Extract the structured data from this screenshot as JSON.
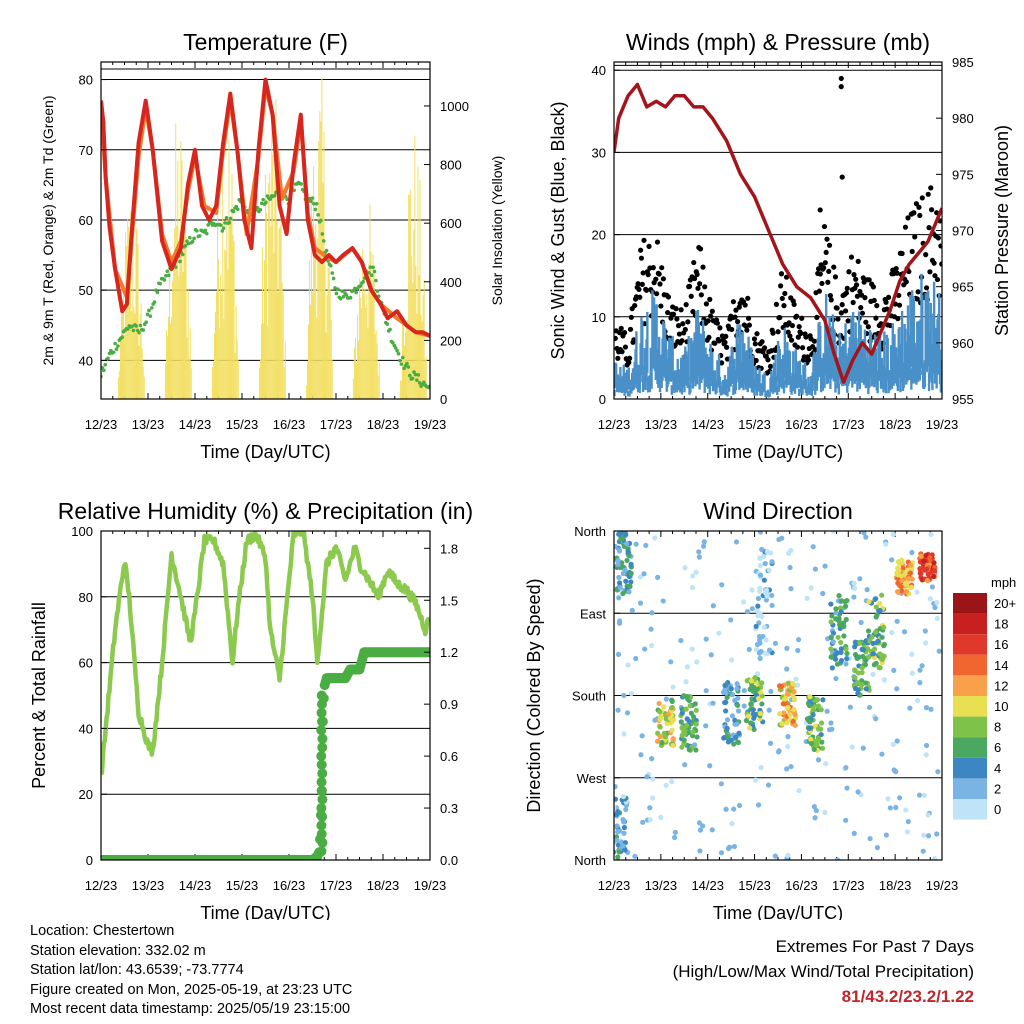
{
  "chart_data": [
    {
      "type": "line",
      "title": "Temperature (F)",
      "xlabel": "Time (Day/UTC)",
      "ylabel": "2m & 9m T (Red, Orange) & 2m Td (Green)",
      "y2label": "Solar Insolation (Yellow)",
      "x_ticks": [
        "12/23",
        "13/23",
        "14/23",
        "15/23",
        "16/23",
        "17/23",
        "18/23",
        "19/23"
      ],
      "xlim": [
        0,
        7
      ],
      "ylim": [
        34.5,
        82.5
      ],
      "y_ticks": [
        40,
        50,
        60,
        70,
        80
      ],
      "y2lim": [
        0,
        1150
      ],
      "y2_ticks": [
        0,
        200,
        400,
        600,
        800,
        1000
      ],
      "grid_y": [
        40,
        50,
        60,
        70,
        80
      ],
      "colors": {
        "t2m": "#d7261e",
        "t9m": "#f27a2c",
        "td2m": "#4aad43",
        "solar": "#f3df60"
      },
      "series": [
        {
          "key": "t2m",
          "x": [
            0,
            0.05,
            0.1,
            0.18,
            0.3,
            0.45,
            0.55,
            0.65,
            0.8,
            0.95,
            1.1,
            1.3,
            1.5,
            1.7,
            1.85,
            2.0,
            2.15,
            2.3,
            2.45,
            2.6,
            2.75,
            2.9,
            3.05,
            3.2,
            3.35,
            3.5,
            3.65,
            3.8,
            3.95,
            4.1,
            4.25,
            4.4,
            4.55,
            4.7,
            4.85,
            5.0,
            5.15,
            5.35,
            5.55,
            5.75,
            5.95,
            6.1,
            6.3,
            6.5,
            6.7,
            6.85,
            7.0
          ],
          "y": [
            77,
            74,
            66,
            59,
            53,
            47,
            48,
            58,
            71,
            77,
            70,
            57,
            53,
            56,
            65,
            70,
            62,
            60,
            62,
            71,
            78,
            70,
            60,
            56,
            70,
            80,
            75,
            62,
            58,
            68,
            75,
            60,
            55,
            54,
            55,
            54,
            55,
            56,
            54,
            50,
            48,
            46,
            47,
            45,
            44,
            44,
            43.5
          ]
        },
        {
          "key": "t9m",
          "x": [
            0,
            0.1,
            0.3,
            0.55,
            0.8,
            0.95,
            1.1,
            1.3,
            1.5,
            1.7,
            1.85,
            2.0,
            2.2,
            2.45,
            2.6,
            2.75,
            2.9,
            3.1,
            3.35,
            3.5,
            3.65,
            3.85,
            4.1,
            4.25,
            4.4,
            4.55,
            4.75,
            5.0,
            5.35,
            5.55,
            5.75,
            5.95,
            6.3,
            6.7,
            7.0
          ],
          "y": [
            76,
            66,
            53,
            49,
            69,
            76,
            70,
            58,
            54,
            57,
            64,
            69,
            62,
            61,
            70,
            77,
            70,
            58,
            69,
            79,
            75,
            63,
            67,
            74,
            61,
            56,
            55,
            54,
            56,
            54,
            50,
            48,
            46,
            44,
            43.5
          ]
        },
        {
          "key": "td2m",
          "x": [
            0,
            0.2,
            0.4,
            0.6,
            0.8,
            1.0,
            1.2,
            1.4,
            1.6,
            1.8,
            2.0,
            2.2,
            2.4,
            2.6,
            2.8,
            3.0,
            3.2,
            3.4,
            3.6,
            3.8,
            4.0,
            4.2,
            4.4,
            4.6,
            4.8,
            5.0,
            5.2,
            5.4,
            5.6,
            5.8,
            6.0,
            6.2,
            6.4,
            6.6,
            6.8,
            7.0
          ],
          "y": [
            38,
            41,
            43,
            45,
            44,
            46,
            50,
            52,
            54,
            56,
            58,
            58,
            60,
            59,
            61,
            63,
            60,
            62,
            63,
            64,
            63,
            65,
            63,
            62,
            55,
            50,
            49,
            50,
            52,
            53,
            47,
            43,
            40,
            38,
            37,
            36
          ]
        },
        {
          "key": "solar",
          "note": "daily insolation peaks",
          "x": [
            0.65,
            1.65,
            2.65,
            3.65,
            4.65,
            5.65,
            6.65
          ],
          "y": [
            760,
            1000,
            1100,
            1090,
            1130,
            720,
            960
          ]
        }
      ]
    },
    {
      "type": "scatter",
      "title": "Winds (mph) & Pressure (mb)",
      "xlabel": "Time (Day/UTC)",
      "ylabel": "Sonic Wind & Gust (Blue, Black)",
      "y2label": "Station Pressure (Maroon)",
      "x_ticks": [
        "12/23",
        "13/23",
        "14/23",
        "15/23",
        "16/23",
        "17/23",
        "18/23",
        "19/23"
      ],
      "xlim": [
        0,
        7
      ],
      "ylim": [
        0,
        41
      ],
      "y_ticks": [
        0,
        10,
        20,
        30,
        40
      ],
      "y2lim": [
        955,
        985
      ],
      "y2_ticks": [
        955,
        960,
        965,
        970,
        975,
        980,
        985
      ],
      "grid_y": [
        10,
        20,
        30,
        40
      ],
      "colors": {
        "wind": "#4a90c8",
        "gust": "#000000",
        "pressure": "#a3151b"
      },
      "pressure": {
        "x": [
          0,
          0.1,
          0.3,
          0.5,
          0.7,
          0.9,
          1.1,
          1.3,
          1.5,
          1.7,
          1.9,
          2.1,
          2.4,
          2.7,
          3.0,
          3.3,
          3.6,
          3.9,
          4.2,
          4.5,
          4.7,
          4.9,
          5.0,
          5.1,
          5.3,
          5.5,
          5.7,
          5.9,
          6.1,
          6.3,
          6.5,
          6.7,
          6.9,
          7.0
        ],
        "y": [
          977,
          980,
          982,
          983,
          981,
          981.5,
          981,
          982,
          982,
          981,
          981,
          980,
          978,
          975,
          973,
          970,
          967,
          965,
          964,
          962,
          959,
          956.5,
          957.5,
          958.5,
          960,
          959,
          961,
          963,
          965.5,
          967,
          968,
          969,
          971,
          972
        ]
      },
      "wind_envelope": {
        "x": [
          0,
          0.3,
          0.6,
          0.9,
          1.2,
          1.5,
          1.8,
          2.1,
          2.4,
          2.7,
          3.0,
          3.3,
          3.6,
          3.9,
          4.2,
          4.5,
          4.8,
          5.1,
          5.4,
          5.7,
          6.0,
          6.3,
          6.6,
          6.9,
          7.0
        ],
        "y": [
          5,
          4,
          12,
          14,
          8,
          6,
          12,
          7,
          4,
          12,
          5,
          3,
          10,
          6,
          4,
          14,
          8,
          12,
          10,
          8,
          10,
          14,
          16,
          15,
          12
        ]
      },
      "gust_envelope": {
        "x": [
          0,
          0.3,
          0.6,
          0.9,
          1.2,
          1.5,
          1.8,
          2.1,
          2.4,
          2.7,
          3.0,
          3.3,
          3.6,
          3.9,
          4.2,
          4.5,
          4.8,
          5.1,
          5.4,
          5.7,
          6.0,
          6.3,
          6.6,
          6.9,
          7.0
        ],
        "y": [
          9,
          7,
          18,
          19,
          11,
          10,
          18,
          10,
          7,
          16,
          8,
          6,
          15,
          10,
          8,
          20,
          12,
          17,
          14,
          12,
          15,
          21,
          23,
          25,
          20
        ]
      },
      "outliers": {
        "x": [
          4.4,
          4.85,
          4.85,
          4.87
        ],
        "y": [
          23,
          39,
          38,
          27
        ]
      }
    },
    {
      "type": "line",
      "title": "Relative Humidity (%) & Precipitation (in)",
      "xlabel": "Time (Day/UTC)",
      "ylabel": "Percent & Total Rainfall",
      "x_ticks": [
        "12/23",
        "13/23",
        "14/23",
        "15/23",
        "16/23",
        "17/23",
        "18/23",
        "19/23"
      ],
      "xlim": [
        0,
        7
      ],
      "ylim": [
        0,
        100
      ],
      "y_ticks": [
        0,
        20,
        40,
        60,
        80,
        100
      ],
      "y2lim": [
        0,
        1.9
      ],
      "y2_ticks": [
        "0.0",
        "0.3",
        "0.6",
        "0.9",
        "1.2",
        "1.5",
        "1.8"
      ],
      "grid_y": [
        20,
        40,
        60,
        80
      ],
      "colors": {
        "rh": "#8cc94f",
        "precip": "#4aad43"
      },
      "series": [
        {
          "key": "rh",
          "x": [
            0,
            0.1,
            0.3,
            0.5,
            0.6,
            0.8,
            1.0,
            1.1,
            1.3,
            1.5,
            1.7,
            1.9,
            2.0,
            2.2,
            2.4,
            2.6,
            2.8,
            2.9,
            3.1,
            3.3,
            3.5,
            3.6,
            3.8,
            4.0,
            4.1,
            4.3,
            4.5,
            4.6,
            4.8,
            5.0,
            5.2,
            5.4,
            5.5,
            5.7,
            5.9,
            6.1,
            6.3,
            6.5,
            6.7,
            6.9,
            7.0
          ],
          "y": [
            25,
            40,
            70,
            91,
            80,
            45,
            35,
            33,
            60,
            93,
            80,
            66,
            75,
            97,
            97,
            90,
            60,
            75,
            97,
            99,
            92,
            70,
            55,
            85,
            99,
            100,
            80,
            60,
            90,
            95,
            85,
            95,
            90,
            85,
            80,
            88,
            84,
            82,
            78,
            70,
            74
          ]
        },
        {
          "key": "precip",
          "x": [
            0,
            4.5,
            4.6,
            4.65,
            4.7,
            4.72,
            4.75,
            4.8,
            5.2,
            5.3,
            5.5,
            5.6,
            6.0,
            7.0
          ],
          "y": [
            0,
            0,
            0.02,
            0.05,
            0.4,
            0.8,
            1.0,
            1.05,
            1.05,
            1.1,
            1.1,
            1.2,
            1.2,
            1.2
          ]
        }
      ]
    },
    {
      "type": "scatter",
      "title": "Wind Direction",
      "xlabel": "Time (Day/UTC)",
      "ylabel": "Direction (Colored By Speed)",
      "x_ticks": [
        "12/23",
        "13/23",
        "14/23",
        "15/23",
        "16/23",
        "17/23",
        "18/23",
        "19/23"
      ],
      "xlim": [
        0,
        7
      ],
      "ylim": [
        0,
        360
      ],
      "y_ticks": [
        "North",
        "East",
        "South",
        "West",
        "North"
      ],
      "grid_y": [
        90,
        180,
        270
      ],
      "legend_title": "mph",
      "legend_labels": [
        "20+",
        "18",
        "16",
        "14",
        "12",
        "10",
        "8",
        "6",
        "4",
        "2",
        "0"
      ],
      "legend_colors": [
        "#9b1418",
        "#c8201f",
        "#e0382a",
        "#f06530",
        "#f8a14a",
        "#e8df52",
        "#7ec24a",
        "#4ba860",
        "#3d86c4",
        "#7ab4e4",
        "#bfe4f7"
      ],
      "clusters": [
        {
          "x": 0.2,
          "dir": 320,
          "spread": 30,
          "speed": 4
        },
        {
          "x": 0.1,
          "dir": 30,
          "spread": 40,
          "speed": 3
        },
        {
          "x": 1.1,
          "dir": 150,
          "spread": 25,
          "speed": 9
        },
        {
          "x": 1.6,
          "dir": 150,
          "spread": 30,
          "speed": 6
        },
        {
          "x": 2.5,
          "dir": 160,
          "spread": 35,
          "speed": 4
        },
        {
          "x": 3.0,
          "dir": 170,
          "spread": 30,
          "speed": 7
        },
        {
          "x": 3.2,
          "dir": 280,
          "spread": 60,
          "speed": 1
        },
        {
          "x": 3.7,
          "dir": 170,
          "spread": 25,
          "speed": 11
        },
        {
          "x": 4.3,
          "dir": 150,
          "spread": 30,
          "speed": 7
        },
        {
          "x": 4.8,
          "dir": 250,
          "spread": 40,
          "speed": 5
        },
        {
          "x": 5.3,
          "dir": 210,
          "spread": 30,
          "speed": 6
        },
        {
          "x": 5.6,
          "dir": 250,
          "spread": 40,
          "speed": 7
        },
        {
          "x": 6.2,
          "dir": 310,
          "spread": 20,
          "speed": 12
        },
        {
          "x": 6.7,
          "dir": 320,
          "spread": 15,
          "speed": 15
        }
      ]
    }
  ],
  "info": {
    "location": "Location: Chestertown",
    "elevation": "Station elevation: 332.02 m",
    "latlon": "Station lat/lon: 43.6539; -73.7774",
    "created": "Figure created on Mon, 2025-05-19, at 23:23 UTC",
    "latest": "Most recent data timestamp: 2025/05/19 23:15:00"
  },
  "extremes": {
    "title": "Extremes For Past 7 Days",
    "subtitle": "(High/Low/Max Wind/Total Precipitation)",
    "values": "81/43.2/23.2/1.22"
  }
}
